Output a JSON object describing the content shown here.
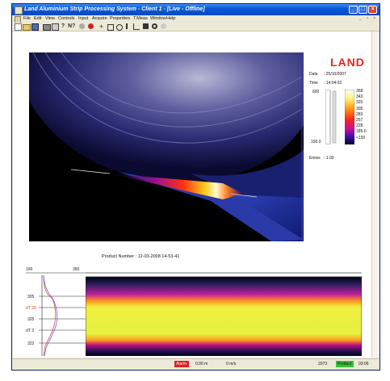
{
  "window": {
    "title": "Land Aluminium Strip Processing System - Client 1 - [Live - Offline]",
    "controls": {
      "minimize": "_",
      "maximize": "□",
      "close": "×"
    }
  },
  "menu": [
    "File",
    "Edit",
    "View",
    "Controls",
    "Input",
    "Acquire",
    "Properties",
    "T.Meas",
    "Window",
    "Help"
  ],
  "toolbar": {
    "icons": [
      "new-icon",
      "open-icon",
      "save-icon",
      "print-icon",
      "preview-icon",
      "help-icon",
      "context-help-icon",
      "stop-icon",
      "record-icon",
      "crosshair-icon",
      "rectangle-icon",
      "circle-icon",
      "line-icon",
      "profile-icon",
      "grid-icon",
      "target-icon",
      "disabled-icon"
    ]
  },
  "side_panel": {
    "logo": "LAND",
    "date_label": "Date",
    "date_value": ": 25/10/2007",
    "time_label": "Time",
    "time_value": ": 14:04:02",
    "scale_top": "600",
    "scale_bottom": "150.0",
    "scale_ticks": [
      "358",
      "343",
      "325",
      "305",
      "283",
      "257",
      "228",
      "185.0",
      "<150"
    ],
    "emiss_label": "Emiss",
    "emiss_value": ": 1.00"
  },
  "product": {
    "label": "Product Number : 12-03-2008 14-53-41"
  },
  "profile_panel": {
    "axis_min": "160",
    "axis_max": "360",
    "ticks": [
      "305",
      "dT 20",
      "325",
      "dT 3",
      "322"
    ]
  },
  "status": {
    "alarm_label": "Alarm",
    "distance": "0.00 m",
    "speed": "0 m/s",
    "frame": "2073",
    "product_label": "Product",
    "clock": "03:06"
  },
  "colors": {
    "title_bar": "#0a5ad6",
    "logo": "#e0281e",
    "alarm": "#e02020",
    "product": "#38c038",
    "thermal_background": "#000000"
  }
}
